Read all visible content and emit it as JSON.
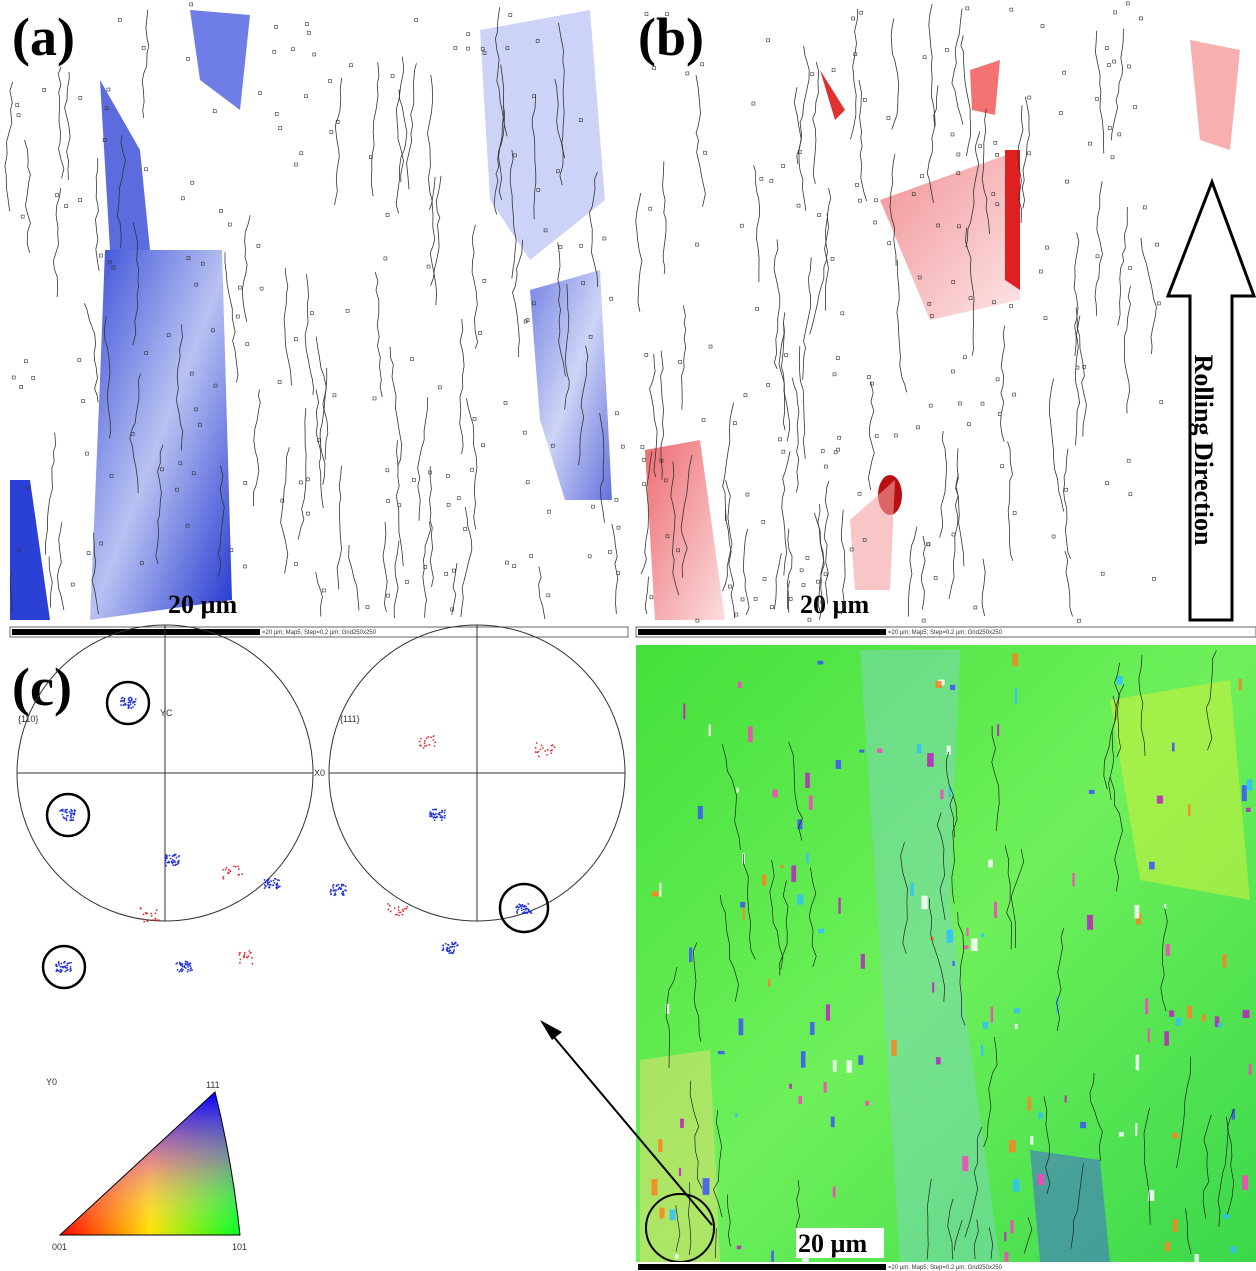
{
  "panels": {
    "a": {
      "label": "(a)",
      "scale": "20 µm",
      "bar_text": "=20 µm; Map5; Step=0.2 µm; Grid250x250"
    },
    "b": {
      "label": "(b)",
      "scale": "20 µm",
      "bar_text": "=20 µm; Map5; Step=0.2 µm; Grid250x250"
    },
    "c": {
      "label": "(c)",
      "scale": "20 µm",
      "bar_text": "=20 µm; Map5; Step=0.2 µm; Grid250x250"
    }
  },
  "rolling_direction": "Rolling Direction",
  "pole_figures": [
    {
      "title": "{110}",
      "axis_top": "YC",
      "axis_right": "X0"
    },
    {
      "title": "{111}"
    }
  ],
  "ipf": {
    "axis": "Y0",
    "corners": [
      "001",
      "101",
      "111"
    ]
  }
}
